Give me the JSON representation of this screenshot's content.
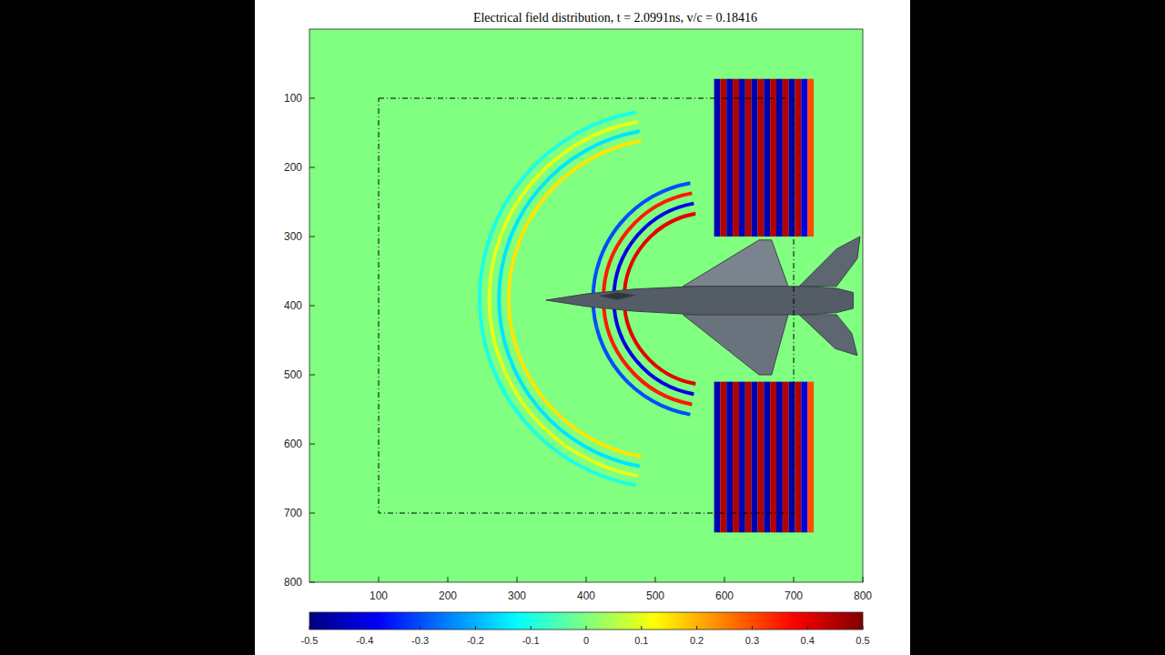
{
  "chart_data": {
    "type": "heatmap",
    "title": "Electrical field distribution, t = 2.0991ns, v/c = 0.18416",
    "xlim": [
      0,
      800
    ],
    "ylim": [
      0,
      800
    ],
    "xticks": [
      100,
      200,
      300,
      400,
      500,
      600,
      700,
      800
    ],
    "yticks": [
      100,
      200,
      300,
      400,
      500,
      600,
      700,
      800
    ],
    "colorbar": {
      "lim": [
        -0.5,
        0.5
      ],
      "ticks": [
        -0.5,
        -0.4,
        -0.3,
        -0.2,
        -0.1,
        0,
        0.1,
        0.2,
        0.3,
        0.4,
        0.5
      ]
    },
    "background_value": 0,
    "boundary": {
      "x": [
        100,
        700
      ],
      "y": [
        100,
        700
      ]
    },
    "stripes": {
      "x": [
        585,
        594,
        603,
        612,
        621,
        630,
        639,
        648,
        657,
        666,
        675,
        684,
        693,
        702,
        711,
        720
      ],
      "width": 9,
      "y_upper": [
        72,
        300
      ],
      "y_lower": [
        510,
        728
      ],
      "values": [
        -0.45,
        0.45,
        -0.45,
        0.45,
        -0.45,
        0.45,
        -0.45,
        0.45,
        -0.45,
        0.45,
        -0.45,
        0.45,
        -0.45,
        0.45,
        -0.4,
        0.3
      ]
    },
    "arcs": [
      {
        "center": [
          520,
          390
        ],
        "r": [
          232,
          246,
          260,
          274
        ],
        "values": [
          0.15,
          -0.15,
          0.1,
          -0.1
        ]
      },
      {
        "center": [
          580,
          390
        ],
        "r": [
          125,
          140,
          155,
          170
        ],
        "values": [
          0.4,
          -0.4,
          0.35,
          -0.3
        ]
      }
    ]
  }
}
